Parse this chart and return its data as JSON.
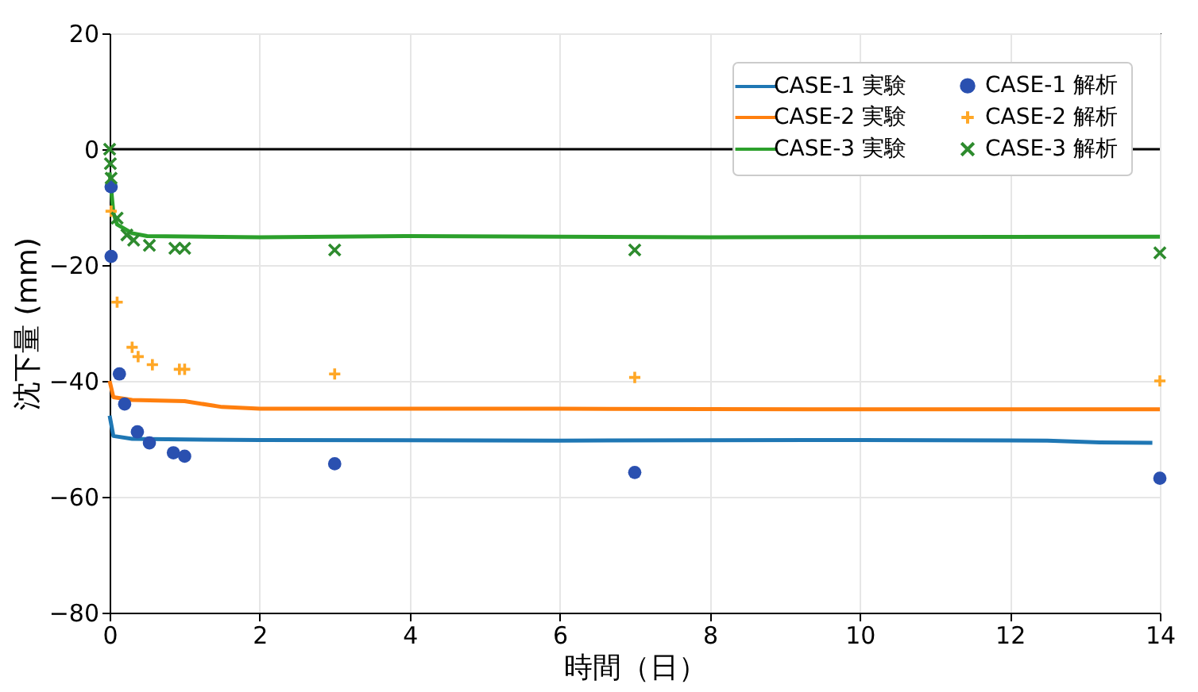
{
  "chart_data": {
    "type": "line",
    "xlabel": "時間（日）",
    "ylabel": "沈下量 (mm)",
    "xlim": [
      0,
      14
    ],
    "xticks": [
      0,
      2,
      4,
      6,
      8,
      10,
      12,
      14
    ],
    "ylim": [
      -80,
      20
    ],
    "yticks": [
      -80,
      -60,
      -40,
      -20,
      0,
      20
    ],
    "grid": true,
    "legend": "top right",
    "line_style": "solid",
    "ref_lines": [
      {
        "axis": "y",
        "value": 0,
        "color": "#000000"
      }
    ],
    "series": [
      {
        "name": "CASE-1 実験",
        "color": "#1f77b4",
        "x": [
          0,
          0.05,
          0.3,
          1,
          2,
          6,
          10,
          12.5,
          13.2,
          13.9
        ],
        "values": [
          -46,
          -49.5,
          -50,
          -50.1,
          -50.2,
          -50.3,
          -50.2,
          -50.3,
          -50.6,
          -50.7
        ]
      },
      {
        "name": "CASE-2 実験",
        "color": "#ff7f0e",
        "x": [
          0,
          0.05,
          0.3,
          1,
          1.5,
          2,
          6,
          10,
          14
        ],
        "values": [
          -40,
          -42.8,
          -43.3,
          -43.5,
          -44.5,
          -44.8,
          -44.8,
          -44.9,
          -44.9
        ]
      },
      {
        "name": "CASE-3 実験",
        "color": "#2ca02c",
        "x": [
          0,
          0.05,
          0.1,
          0.3,
          0.5,
          2,
          4,
          8,
          14
        ],
        "values": [
          -4,
          -11,
          -13,
          -14.5,
          -15,
          -15.2,
          -15,
          -15.2,
          -15.1
        ]
      },
      {
        "name": "CASE-1 解析",
        "type": "scatter",
        "marker": "circle",
        "color": "#2a50b0",
        "x": [
          0.02,
          0.02,
          0.13,
          0.2,
          0.37,
          0.53,
          0.85,
          1,
          3,
          7,
          14
        ],
        "values": [
          -6.5,
          -18.5,
          -38.8,
          -44,
          -48.8,
          -50.7,
          -52.4,
          -53,
          -54.3,
          -55.8,
          -56.8
        ]
      },
      {
        "name": "CASE-2 解析",
        "type": "scatter",
        "marker": "plus",
        "color": "#ffa726",
        "x": [
          0.02,
          0.1,
          0.3,
          0.38,
          0.57,
          0.93,
          1,
          3,
          7,
          14
        ],
        "values": [
          -10.7,
          -26.4,
          -34.2,
          -35.8,
          -37.2,
          -38,
          -38,
          -38.8,
          -39.4,
          -40
        ]
      },
      {
        "name": "CASE-3 解析",
        "type": "scatter",
        "marker": "x",
        "color": "#2e8b2e",
        "x": [
          0,
          0.01,
          0.02,
          0.1,
          0.23,
          0.32,
          0.53,
          0.87,
          1,
          3,
          7,
          14
        ],
        "values": [
          0,
          -2.5,
          -5,
          -11.9,
          -14.8,
          -15.7,
          -16.6,
          -17.1,
          -17.1,
          -17.4,
          -17.4,
          -17.9
        ]
      }
    ]
  }
}
